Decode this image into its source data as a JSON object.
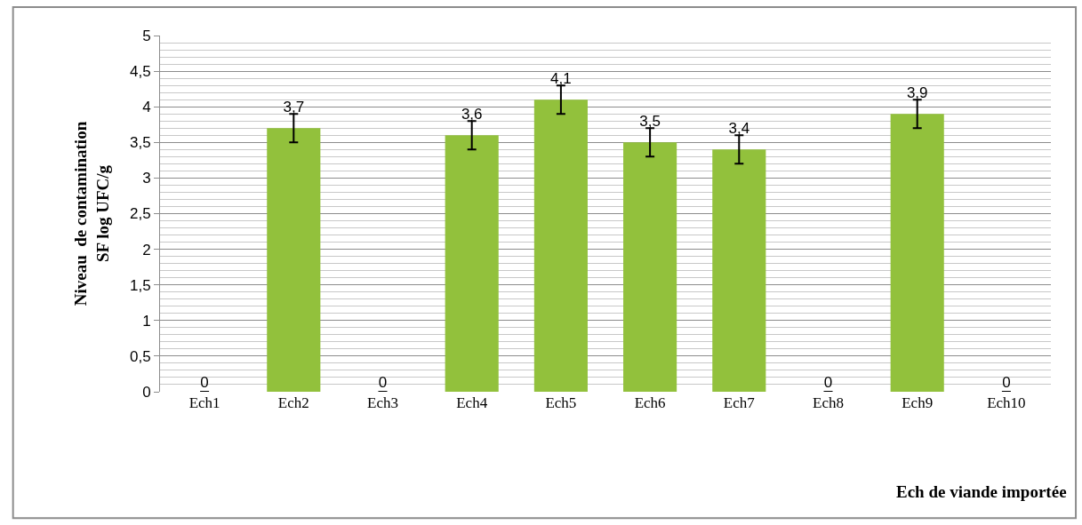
{
  "chart_data": {
    "type": "bar",
    "xlabel": "Ech de viande importée",
    "ylabel": "Niveau  de contamination\nSF log UFC/g",
    "categories": [
      "Ech1",
      "Ech2",
      "Ech3",
      "Ech4",
      "Ech5",
      "Ech6",
      "Ech7",
      "Ech8",
      "Ech9",
      "Ech10"
    ],
    "values": [
      0,
      3.7,
      0,
      3.6,
      4.1,
      3.5,
      3.4,
      0,
      3.9,
      0
    ],
    "value_labels": [
      "0",
      "3,7",
      "0",
      "3,6",
      "4,1",
      "3,5",
      "3,4",
      "0",
      "3,9",
      "0"
    ],
    "errors": [
      null,
      0.2,
      null,
      0.2,
      0.2,
      0.2,
      0.2,
      null,
      0.2,
      null
    ],
    "color": "#92c13c",
    "ylim": [
      0,
      5
    ],
    "yticks": [
      0,
      {
        "value": 0.5,
        "label": "0,5"
      },
      1,
      {
        "value": 1.5,
        "label": "1,5"
      },
      2,
      {
        "value": 2.5,
        "label": "2,5"
      },
      3,
      {
        "value": 3.5,
        "label": "3,5"
      },
      4,
      {
        "value": 4.5,
        "label": "4,5"
      },
      5
    ],
    "grid": "y"
  }
}
